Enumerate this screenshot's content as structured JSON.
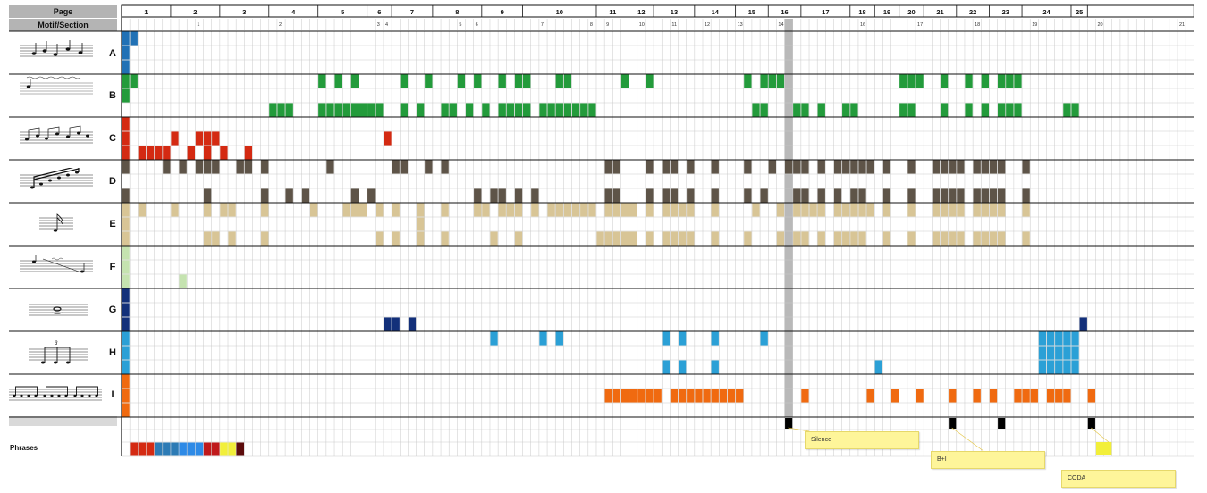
{
  "header": {
    "page_label": "Page",
    "section_label": "Motif/Section"
  },
  "pages": [
    {
      "label": "1",
      "start": 1,
      "end": 6
    },
    {
      "label": "2",
      "start": 7,
      "end": 12
    },
    {
      "label": "3",
      "start": 13,
      "end": 18
    },
    {
      "label": "4",
      "start": 19,
      "end": 24
    },
    {
      "label": "5",
      "start": 25,
      "end": 30
    },
    {
      "label": "6",
      "start": 31,
      "end": 33
    },
    {
      "label": "7",
      "start": 34,
      "end": 38
    },
    {
      "label": "8",
      "start": 39,
      "end": 44
    },
    {
      "label": "9",
      "start": 45,
      "end": 49
    },
    {
      "label": "10",
      "start": 50,
      "end": 58
    },
    {
      "label": "11",
      "start": 59,
      "end": 62
    },
    {
      "label": "12",
      "start": 63,
      "end": 65
    },
    {
      "label": "13",
      "start": 66,
      "end": 70
    },
    {
      "label": "14",
      "start": 71,
      "end": 75
    },
    {
      "label": "15",
      "start": 76,
      "end": 79
    },
    {
      "label": "16",
      "start": 80,
      "end": 83
    },
    {
      "label": "17",
      "start": 84,
      "end": 89
    },
    {
      "label": "18",
      "start": 90,
      "end": 92
    },
    {
      "label": "19",
      "start": 93,
      "end": 95
    },
    {
      "label": "20",
      "start": 96,
      "end": 98
    },
    {
      "label": "21",
      "start": 99,
      "end": 102
    },
    {
      "label": "22",
      "start": 103,
      "end": 106
    },
    {
      "label": "23",
      "start": 107,
      "end": 110
    },
    {
      "label": "24",
      "start": 111,
      "end": 116
    },
    {
      "label": "25",
      "start": 117,
      "end": 118
    }
  ],
  "section_numbers": [
    {
      "label": "1",
      "col": 10
    },
    {
      "label": "2",
      "col": 20
    },
    {
      "label": "3",
      "col": 32
    },
    {
      "label": "4",
      "col": 33
    },
    {
      "label": "5",
      "col": 42
    },
    {
      "label": "6",
      "col": 44
    },
    {
      "label": "7",
      "col": 52
    },
    {
      "label": "8",
      "col": 58
    },
    {
      "label": "9",
      "col": 60
    },
    {
      "label": "10",
      "col": 64
    },
    {
      "label": "11",
      "col": 68
    },
    {
      "label": "12",
      "col": 72
    },
    {
      "label": "13",
      "col": 76
    },
    {
      "label": "14",
      "col": 81
    },
    {
      "label": "15",
      "col": 82
    },
    {
      "label": "16",
      "col": 91
    },
    {
      "label": "17",
      "col": 98
    },
    {
      "label": "18",
      "col": 105
    },
    {
      "label": "19",
      "col": 112
    },
    {
      "label": "20",
      "col": 120
    },
    {
      "label": "21",
      "col": 130
    }
  ],
  "motifs": [
    {
      "label": "A",
      "color": "#2171b5"
    },
    {
      "label": "B",
      "color": "#239b3b"
    },
    {
      "label": "C",
      "color": "#d42a12"
    },
    {
      "label": "D",
      "color": "#5e5448"
    },
    {
      "label": "E",
      "color": "#d8c596"
    },
    {
      "label": "F",
      "color": "#c5e3b0"
    },
    {
      "label": "G",
      "color": "#13307a"
    },
    {
      "label": "H",
      "color": "#2ba0d6"
    },
    {
      "label": "I",
      "color": "#f06a10"
    }
  ],
  "cells": {
    "A": [
      [
        1,
        0
      ],
      [
        2,
        0
      ],
      [
        1,
        1
      ],
      [
        1,
        2
      ]
    ],
    "B": [
      [
        1,
        0
      ],
      [
        2,
        0
      ],
      [
        25,
        0
      ],
      [
        27,
        0
      ],
      [
        29,
        0
      ],
      [
        35,
        0
      ],
      [
        38,
        0
      ],
      [
        42,
        0
      ],
      [
        44,
        0
      ],
      [
        47,
        0
      ],
      [
        49,
        0
      ],
      [
        50,
        0
      ],
      [
        54,
        0
      ],
      [
        55,
        0
      ],
      [
        62,
        0
      ],
      [
        65,
        0
      ],
      [
        77,
        0
      ],
      [
        79,
        0
      ],
      [
        80,
        0
      ],
      [
        81,
        0
      ],
      [
        96,
        0
      ],
      [
        97,
        0
      ],
      [
        98,
        0
      ],
      [
        101,
        0
      ],
      [
        104,
        0
      ],
      [
        106,
        0
      ],
      [
        108,
        0
      ],
      [
        109,
        0
      ],
      [
        110,
        0
      ],
      [
        1,
        1
      ],
      [
        19,
        2
      ],
      [
        20,
        2
      ],
      [
        21,
        2
      ],
      [
        25,
        2
      ],
      [
        26,
        2
      ],
      [
        27,
        2
      ],
      [
        28,
        2
      ],
      [
        29,
        2
      ],
      [
        30,
        2
      ],
      [
        31,
        2
      ],
      [
        32,
        2
      ],
      [
        35,
        2
      ],
      [
        37,
        2
      ],
      [
        40,
        2
      ],
      [
        41,
        2
      ],
      [
        43,
        2
      ],
      [
        45,
        2
      ],
      [
        47,
        2
      ],
      [
        48,
        2
      ],
      [
        49,
        2
      ],
      [
        50,
        2
      ],
      [
        52,
        2
      ],
      [
        53,
        2
      ],
      [
        54,
        2
      ],
      [
        55,
        2
      ],
      [
        56,
        2
      ],
      [
        57,
        2
      ],
      [
        58,
        2
      ],
      [
        78,
        2
      ],
      [
        79,
        2
      ],
      [
        83,
        2
      ],
      [
        84,
        2
      ],
      [
        86,
        2
      ],
      [
        89,
        2
      ],
      [
        90,
        2
      ],
      [
        96,
        2
      ],
      [
        97,
        2
      ],
      [
        101,
        2
      ],
      [
        104,
        2
      ],
      [
        106,
        2
      ],
      [
        108,
        2
      ],
      [
        109,
        2
      ],
      [
        110,
        2
      ],
      [
        116,
        2
      ],
      [
        117,
        2
      ],
      [
        1,
        1
      ]
    ],
    "C": [
      [
        1,
        0
      ],
      [
        7,
        1
      ],
      [
        10,
        1
      ],
      [
        11,
        1
      ],
      [
        12,
        1
      ],
      [
        33,
        1
      ],
      [
        1,
        1
      ],
      [
        3,
        2
      ],
      [
        4,
        2
      ],
      [
        5,
        2
      ],
      [
        6,
        2
      ],
      [
        9,
        2
      ],
      [
        11,
        2
      ],
      [
        13,
        2
      ],
      [
        16,
        2
      ],
      [
        1,
        2
      ]
    ],
    "D": [
      [
        1,
        0
      ],
      [
        6,
        0
      ],
      [
        8,
        0
      ],
      [
        10,
        0
      ],
      [
        11,
        0
      ],
      [
        12,
        0
      ],
      [
        15,
        0
      ],
      [
        16,
        0
      ],
      [
        18,
        0
      ],
      [
        26,
        0
      ],
      [
        34,
        0
      ],
      [
        35,
        0
      ],
      [
        38,
        0
      ],
      [
        40,
        0
      ],
      [
        60,
        0
      ],
      [
        61,
        0
      ],
      [
        65,
        0
      ],
      [
        67,
        0
      ],
      [
        68,
        0
      ],
      [
        70,
        0
      ],
      [
        73,
        0
      ],
      [
        77,
        0
      ],
      [
        80,
        0
      ],
      [
        82,
        0
      ],
      [
        83,
        0
      ],
      [
        84,
        0
      ],
      [
        86,
        0
      ],
      [
        88,
        0
      ],
      [
        89,
        0
      ],
      [
        90,
        0
      ],
      [
        91,
        0
      ],
      [
        92,
        0
      ],
      [
        94,
        0
      ],
      [
        97,
        0
      ],
      [
        100,
        0
      ],
      [
        101,
        0
      ],
      [
        102,
        0
      ],
      [
        103,
        0
      ],
      [
        105,
        0
      ],
      [
        106,
        0
      ],
      [
        107,
        0
      ],
      [
        108,
        0
      ],
      [
        111,
        0
      ],
      [
        1,
        2
      ],
      [
        11,
        2
      ],
      [
        18,
        2
      ],
      [
        21,
        2
      ],
      [
        23,
        2
      ],
      [
        29,
        2
      ],
      [
        31,
        2
      ],
      [
        44,
        2
      ],
      [
        46,
        2
      ],
      [
        47,
        2
      ],
      [
        49,
        2
      ],
      [
        51,
        2
      ],
      [
        60,
        2
      ],
      [
        61,
        2
      ],
      [
        65,
        2
      ],
      [
        67,
        2
      ],
      [
        68,
        2
      ],
      [
        70,
        2
      ],
      [
        73,
        2
      ],
      [
        77,
        2
      ],
      [
        79,
        2
      ],
      [
        83,
        2
      ],
      [
        84,
        2
      ],
      [
        86,
        2
      ],
      [
        88,
        2
      ],
      [
        90,
        2
      ],
      [
        91,
        2
      ],
      [
        94,
        2
      ],
      [
        97,
        2
      ],
      [
        100,
        2
      ],
      [
        101,
        2
      ],
      [
        102,
        2
      ],
      [
        103,
        2
      ],
      [
        105,
        2
      ],
      [
        106,
        2
      ],
      [
        107,
        2
      ],
      [
        108,
        2
      ],
      [
        111,
        2
      ]
    ],
    "E": [
      [
        1,
        0
      ],
      [
        3,
        0
      ],
      [
        7,
        0
      ],
      [
        11,
        0
      ],
      [
        13,
        0
      ],
      [
        14,
        0
      ],
      [
        18,
        0
      ],
      [
        24,
        0
      ],
      [
        28,
        0
      ],
      [
        29,
        0
      ],
      [
        30,
        0
      ],
      [
        32,
        0
      ],
      [
        34,
        0
      ],
      [
        37,
        0
      ],
      [
        40,
        0
      ],
      [
        44,
        0
      ],
      [
        45,
        0
      ],
      [
        47,
        0
      ],
      [
        48,
        0
      ],
      [
        49,
        0
      ],
      [
        51,
        0
      ],
      [
        53,
        0
      ],
      [
        54,
        0
      ],
      [
        55,
        0
      ],
      [
        56,
        0
      ],
      [
        57,
        0
      ],
      [
        58,
        0
      ],
      [
        60,
        0
      ],
      [
        61,
        0
      ],
      [
        62,
        0
      ],
      [
        63,
        0
      ],
      [
        65,
        0
      ],
      [
        67,
        0
      ],
      [
        68,
        0
      ],
      [
        69,
        0
      ],
      [
        70,
        0
      ],
      [
        73,
        0
      ],
      [
        78,
        0
      ],
      [
        81,
        0
      ],
      [
        83,
        0
      ],
      [
        84,
        0
      ],
      [
        85,
        0
      ],
      [
        86,
        0
      ],
      [
        88,
        0
      ],
      [
        89,
        0
      ],
      [
        90,
        0
      ],
      [
        91,
        0
      ],
      [
        92,
        0
      ],
      [
        94,
        0
      ],
      [
        97,
        0
      ],
      [
        100,
        0
      ],
      [
        101,
        0
      ],
      [
        102,
        0
      ],
      [
        103,
        0
      ],
      [
        105,
        0
      ],
      [
        106,
        0
      ],
      [
        107,
        0
      ],
      [
        108,
        0
      ],
      [
        111,
        0
      ],
      [
        37,
        1
      ],
      [
        1,
        1
      ],
      [
        1,
        2
      ],
      [
        11,
        2
      ],
      [
        12,
        2
      ],
      [
        14,
        2
      ],
      [
        18,
        2
      ],
      [
        32,
        2
      ],
      [
        34,
        2
      ],
      [
        37,
        2
      ],
      [
        40,
        2
      ],
      [
        46,
        2
      ],
      [
        49,
        2
      ],
      [
        59,
        2
      ],
      [
        60,
        2
      ],
      [
        61,
        2
      ],
      [
        62,
        2
      ],
      [
        63,
        2
      ],
      [
        65,
        2
      ],
      [
        67,
        2
      ],
      [
        68,
        2
      ],
      [
        69,
        2
      ],
      [
        70,
        2
      ],
      [
        73,
        2
      ],
      [
        77,
        2
      ],
      [
        81,
        2
      ],
      [
        83,
        2
      ],
      [
        84,
        2
      ],
      [
        86,
        2
      ],
      [
        88,
        2
      ],
      [
        89,
        2
      ],
      [
        90,
        2
      ],
      [
        91,
        2
      ],
      [
        94,
        2
      ],
      [
        97,
        2
      ],
      [
        100,
        2
      ],
      [
        101,
        2
      ],
      [
        102,
        2
      ],
      [
        103,
        2
      ],
      [
        105,
        2
      ],
      [
        106,
        2
      ],
      [
        107,
        2
      ],
      [
        108,
        2
      ],
      [
        111,
        2
      ]
    ],
    "F": [
      [
        1,
        0
      ],
      [
        1,
        1
      ],
      [
        1,
        2
      ],
      [
        8,
        2
      ]
    ],
    "G": [
      [
        1,
        0
      ],
      [
        1,
        1
      ],
      [
        1,
        2
      ],
      [
        33,
        2
      ],
      [
        34,
        2
      ],
      [
        36,
        2
      ],
      [
        118,
        2
      ]
    ],
    "H": [
      [
        1,
        0
      ],
      [
        46,
        0
      ],
      [
        52,
        0
      ],
      [
        54,
        0
      ],
      [
        67,
        0
      ],
      [
        69,
        0
      ],
      [
        73,
        0
      ],
      [
        79,
        0
      ],
      [
        1,
        1
      ],
      [
        1,
        2
      ],
      [
        67,
        2
      ],
      [
        69,
        2
      ],
      [
        73,
        2
      ],
      [
        93,
        2
      ],
      [
        113,
        0
      ],
      [
        114,
        0
      ],
      [
        115,
        0
      ],
      [
        116,
        0
      ],
      [
        117,
        0
      ],
      [
        113,
        1
      ],
      [
        114,
        1
      ],
      [
        115,
        1
      ],
      [
        116,
        1
      ],
      [
        117,
        1
      ],
      [
        113,
        2
      ],
      [
        114,
        2
      ],
      [
        115,
        2
      ],
      [
        116,
        2
      ],
      [
        117,
        2
      ]
    ],
    "I": [
      [
        1,
        0
      ],
      [
        1,
        1
      ],
      [
        1,
        2
      ],
      [
        60,
        1
      ],
      [
        61,
        1
      ],
      [
        62,
        1
      ],
      [
        63,
        1
      ],
      [
        64,
        1
      ],
      [
        65,
        1
      ],
      [
        66,
        1
      ],
      [
        68,
        1
      ],
      [
        69,
        1
      ],
      [
        70,
        1
      ],
      [
        71,
        1
      ],
      [
        72,
        1
      ],
      [
        73,
        1
      ],
      [
        74,
        1
      ],
      [
        75,
        1
      ],
      [
        76,
        1
      ],
      [
        84,
        1
      ],
      [
        92,
        1
      ],
      [
        95,
        1
      ],
      [
        98,
        1
      ],
      [
        102,
        1
      ],
      [
        105,
        1
      ],
      [
        107,
        1
      ],
      [
        110,
        1
      ],
      [
        111,
        1
      ],
      [
        112,
        1
      ],
      [
        114,
        1
      ],
      [
        115,
        1
      ],
      [
        116,
        1
      ],
      [
        119,
        1
      ]
    ]
  },
  "silence_marks": [
    82,
    102,
    108,
    119
  ],
  "coda_mark": 120,
  "phrases": {
    "label": "Phrases",
    "colors": [
      "#d42a12",
      "#d42a12",
      "#d42a12",
      "#2d7bb5",
      "#2d7bb5",
      "#2d7bb5",
      "#2e8ae6",
      "#2e8ae6",
      "#2e8ae6",
      "#c0191b",
      "#c0191b",
      "#f2ef3a",
      "#f2ef3a",
      "#5c0c0c"
    ]
  },
  "annotations": {
    "silence": "Silence",
    "b_plus_i": "B+I",
    "coda": "CODA"
  },
  "colors": {
    "grid_line": "#c9c9c9",
    "heavy_line": "#111111",
    "highlight_column": "#b9b9b9",
    "header_gray": "#b4b4b4"
  }
}
